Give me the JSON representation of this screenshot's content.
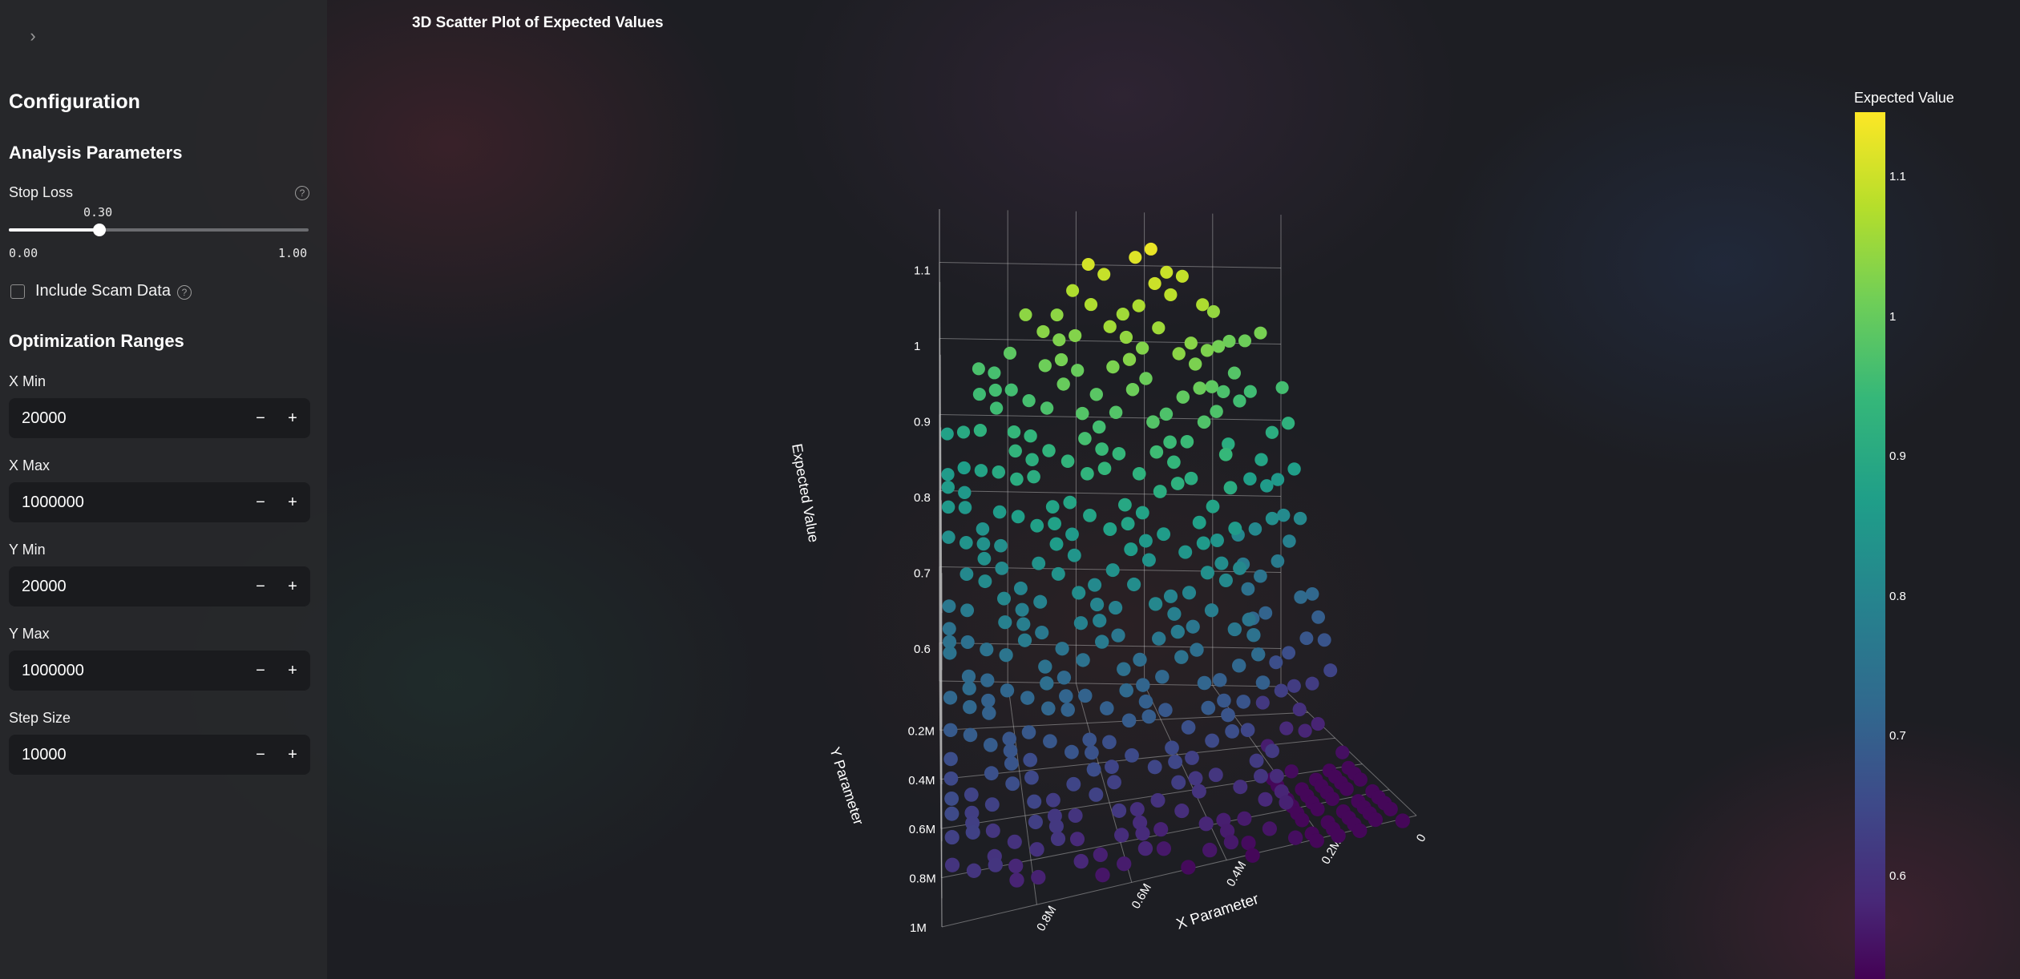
{
  "sidebar": {
    "collapse_icon": "chevron-right-icon",
    "title": "Configuration",
    "analysis": {
      "heading": "Analysis Parameters",
      "stop_loss_label": "Stop Loss",
      "stop_loss_value": "0.30",
      "stop_loss_fraction": 0.3,
      "stop_loss_min": "0.00",
      "stop_loss_max": "1.00",
      "scam_label": "Include Scam Data",
      "scam_checked": false
    },
    "ranges": {
      "heading": "Optimization Ranges",
      "fields": [
        {
          "label": "X Min",
          "value": "20000"
        },
        {
          "label": "X Max",
          "value": "1000000"
        },
        {
          "label": "Y Min",
          "value": "20000"
        },
        {
          "label": "Y Max",
          "value": "1000000"
        },
        {
          "label": "Step Size",
          "value": "10000"
        }
      ],
      "minus": "−",
      "plus": "+"
    }
  },
  "chart_data": {
    "type": "scatter",
    "title": "3D Scatter Plot of Expected Values",
    "x_label": "X Parameter",
    "y_label": "Y Parameter",
    "z_label": "Expected Value",
    "x_ticks": [
      "0",
      "0.2M",
      "0.4M",
      "0.6M",
      "0.8M"
    ],
    "y_ticks": [
      "0.2M",
      "0.4M",
      "0.6M",
      "0.8M",
      "1M"
    ],
    "z_ticks": [
      "0.6",
      "0.7",
      "0.8",
      "0.9",
      "1",
      "1.1"
    ],
    "x_range": [
      0,
      1000000
    ],
    "y_range": [
      0,
      1000000
    ],
    "z_range": [
      0.55,
      1.15
    ],
    "colorscale": "viridis",
    "colorbar_title": "Expected Value",
    "colorbar_ticks": [
      "1.1",
      "1",
      "0.9",
      "0.8",
      "0.7",
      "0.6"
    ],
    "colorbar_range": [
      0.53,
      1.15
    ]
  }
}
